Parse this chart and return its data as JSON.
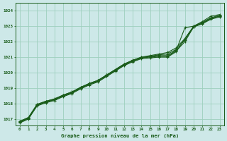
{
  "title": "Graphe pression niveau de la mer (hPa)",
  "bg_color": "#cde8e8",
  "grid_color": "#9ecfbe",
  "line_color": "#1a5c1a",
  "xlim": [
    -0.5,
    23.5
  ],
  "ylim": [
    1016.6,
    1024.5
  ],
  "xticks": [
    0,
    1,
    2,
    3,
    4,
    5,
    6,
    7,
    8,
    9,
    10,
    11,
    12,
    13,
    14,
    15,
    16,
    17,
    18,
    19,
    20,
    21,
    22,
    23
  ],
  "yticks": [
    1017,
    1018,
    1019,
    1020,
    1021,
    1022,
    1023,
    1024
  ],
  "series": [
    [
      1016.85,
      1017.1,
      1017.95,
      1018.15,
      1018.3,
      1018.55,
      1018.75,
      1019.05,
      1019.3,
      1019.5,
      1019.85,
      1020.2,
      1020.55,
      1020.8,
      1021.0,
      1021.05,
      1021.1,
      1021.1,
      1021.45,
      1022.9,
      1023.0,
      1023.25,
      1023.55,
      1023.7
    ],
    [
      1016.75,
      1017.0,
      1017.85,
      1018.05,
      1018.2,
      1018.45,
      1018.65,
      1018.95,
      1019.2,
      1019.4,
      1019.75,
      1020.1,
      1020.45,
      1020.7,
      1020.9,
      1020.95,
      1021.0,
      1021.0,
      1021.35,
      1022.2,
      1022.95,
      1023.15,
      1023.45,
      1023.6
    ],
    [
      1016.8,
      1017.05,
      1017.9,
      1018.1,
      1018.25,
      1018.5,
      1018.7,
      1019.0,
      1019.25,
      1019.45,
      1019.8,
      1020.15,
      1020.5,
      1020.75,
      1020.95,
      1021.0,
      1021.05,
      1021.05,
      1021.4,
      1022.0,
      1022.95,
      1023.2,
      1023.5,
      1023.65
    ],
    [
      1016.85,
      1017.1,
      1017.95,
      1018.15,
      1018.3,
      1018.55,
      1018.75,
      1019.05,
      1019.3,
      1019.5,
      1019.85,
      1020.2,
      1020.55,
      1020.8,
      1021.0,
      1021.1,
      1021.2,
      1021.3,
      1021.6,
      1022.2,
      1023.0,
      1023.3,
      1023.65,
      1023.75
    ],
    [
      1016.8,
      1017.05,
      1017.9,
      1018.1,
      1018.25,
      1018.5,
      1018.7,
      1019.0,
      1019.25,
      1019.45,
      1019.8,
      1020.15,
      1020.5,
      1020.75,
      1020.95,
      1021.05,
      1021.15,
      1021.2,
      1021.5,
      1022.1,
      1022.95,
      1023.2,
      1023.5,
      1023.65
    ]
  ]
}
